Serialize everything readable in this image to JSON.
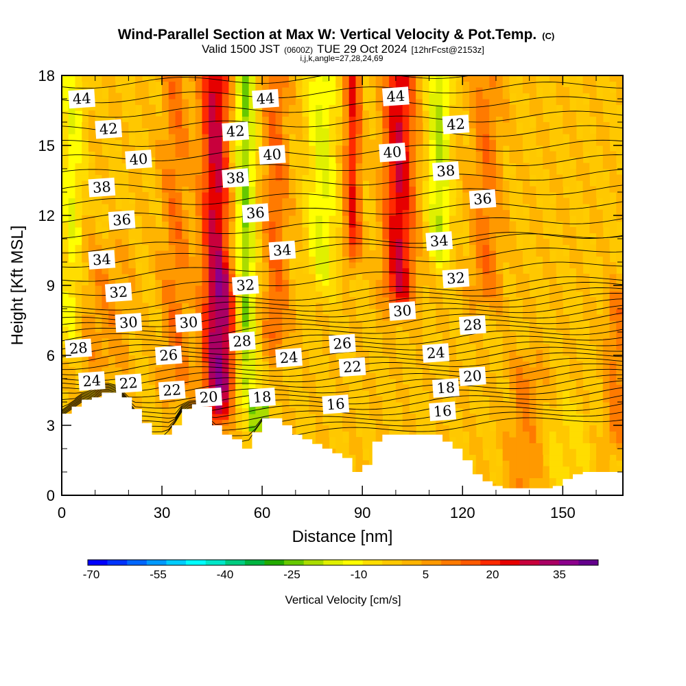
{
  "header": {
    "title": "Wind-Parallel Section at Max W: Vertical Velocity & Pot.Temp.",
    "title_unit": "(C)",
    "valid_prefix": "Valid 1500 JST",
    "valid_utc": "(0600Z)",
    "valid_date": "TUE 29 Oct 2024",
    "forecast_info": "[12hrFcst@2153z]",
    "index_line": "i,j,k,angle=27,28,24,69"
  },
  "chart_data": {
    "type": "heatmap",
    "xlabel": "Distance [nm]",
    "ylabel": "Height [Kft MSL]",
    "xlim": [
      0,
      168
    ],
    "ylim": [
      0,
      18
    ],
    "xticks": [
      0,
      30,
      60,
      90,
      120,
      150
    ],
    "yticks": [
      0,
      3,
      6,
      9,
      12,
      15,
      18
    ],
    "colorbar": {
      "label": "Vertical Velocity [cm/s]",
      "ticks": [
        -70,
        -55,
        -40,
        -25,
        -10,
        5,
        20,
        35
      ],
      "min": -70,
      "max": 45,
      "colors": [
        "#0000ff",
        "#0033ff",
        "#0066ff",
        "#0099ff",
        "#00ccff",
        "#00ffff",
        "#00e6c8",
        "#00cc80",
        "#00b440",
        "#22aa00",
        "#66c800",
        "#aadc00",
        "#e0f000",
        "#ffff00",
        "#ffdd00",
        "#ffc800",
        "#ffb400",
        "#ff9900",
        "#ff7a00",
        "#ff5a00",
        "#ff2a00",
        "#e60000",
        "#c8003c",
        "#aa0064",
        "#8c008c",
        "#64008c"
      ]
    },
    "terrain_kft": {
      "x": [
        0,
        3,
        6,
        9,
        12,
        15,
        18,
        21,
        24,
        27,
        30,
        33,
        36,
        39,
        42,
        45,
        48,
        51,
        54,
        57,
        60,
        63,
        66,
        69,
        72,
        75,
        78,
        81,
        84,
        87,
        90,
        93,
        96,
        99,
        102,
        105,
        108,
        111,
        114,
        117,
        120,
        123,
        126,
        129,
        132,
        135,
        138,
        141,
        144,
        147,
        150,
        153,
        156,
        159,
        162,
        165,
        168
      ],
      "h": [
        3.5,
        3.8,
        4.1,
        4.2,
        4.4,
        4.4,
        4.2,
        3.7,
        3.1,
        2.6,
        2.6,
        3.0,
        3.7,
        3.9,
        3.8,
        3.0,
        2.6,
        2.4,
        2.0,
        2.7,
        3.3,
        3.3,
        3.0,
        2.6,
        2.4,
        2.2,
        2.0,
        1.8,
        1.6,
        1.0,
        1.3,
        2.3,
        2.6,
        2.6,
        2.6,
        2.6,
        2.6,
        2.6,
        2.3,
        2.0,
        1.5,
        0.9,
        0.6,
        0.4,
        0.3,
        0.3,
        0.3,
        0.3,
        0.3,
        0.4,
        0.7,
        0.9,
        1.0,
        1.0,
        1.0,
        1.0,
        1.0
      ]
    },
    "series": [
      {
        "name": "16",
        "values": [
          [
            82,
            3.9
          ],
          [
            114,
            3.6
          ]
        ]
      },
      {
        "name": "18",
        "values": [
          [
            60,
            4.2
          ],
          [
            115,
            4.6
          ]
        ]
      },
      {
        "name": "20",
        "values": [
          [
            44,
            4.2
          ],
          [
            123,
            5.1
          ]
        ]
      },
      {
        "name": "22",
        "values": [
          [
            20,
            4.8
          ],
          [
            33,
            4.5
          ],
          [
            87,
            5.5
          ]
        ]
      },
      {
        "name": "24",
        "values": [
          [
            9,
            4.9
          ],
          [
            68,
            5.9
          ],
          [
            112,
            6.1
          ]
        ]
      },
      {
        "name": "26",
        "values": [
          [
            32,
            6.0
          ],
          [
            84,
            6.5
          ]
        ]
      },
      {
        "name": "28",
        "values": [
          [
            5,
            6.3
          ],
          [
            54,
            6.6
          ],
          [
            123,
            7.3
          ]
        ]
      },
      {
        "name": "30",
        "values": [
          [
            20,
            7.4
          ],
          [
            38,
            7.4
          ],
          [
            102,
            7.9
          ]
        ]
      },
      {
        "name": "32",
        "values": [
          [
            17,
            8.7
          ],
          [
            55,
            9.0
          ],
          [
            118,
            9.3
          ]
        ]
      },
      {
        "name": "34",
        "values": [
          [
            12,
            10.1
          ],
          [
            66,
            10.5
          ],
          [
            113,
            10.9
          ]
        ]
      },
      {
        "name": "36",
        "values": [
          [
            18,
            11.8
          ],
          [
            58,
            12.1
          ],
          [
            126,
            12.7
          ]
        ]
      },
      {
        "name": "38",
        "values": [
          [
            12,
            13.2
          ],
          [
            52,
            13.6
          ],
          [
            115,
            13.9
          ]
        ]
      },
      {
        "name": "40",
        "values": [
          [
            23,
            14.4
          ],
          [
            63,
            14.6
          ],
          [
            99,
            14.7
          ]
        ]
      },
      {
        "name": "42",
        "values": [
          [
            14,
            15.7
          ],
          [
            52,
            15.6
          ],
          [
            118,
            15.9
          ]
        ]
      },
      {
        "name": "44",
        "values": [
          [
            6,
            17.0
          ],
          [
            61,
            17.0
          ],
          [
            100,
            17.1
          ]
        ]
      }
    ]
  }
}
